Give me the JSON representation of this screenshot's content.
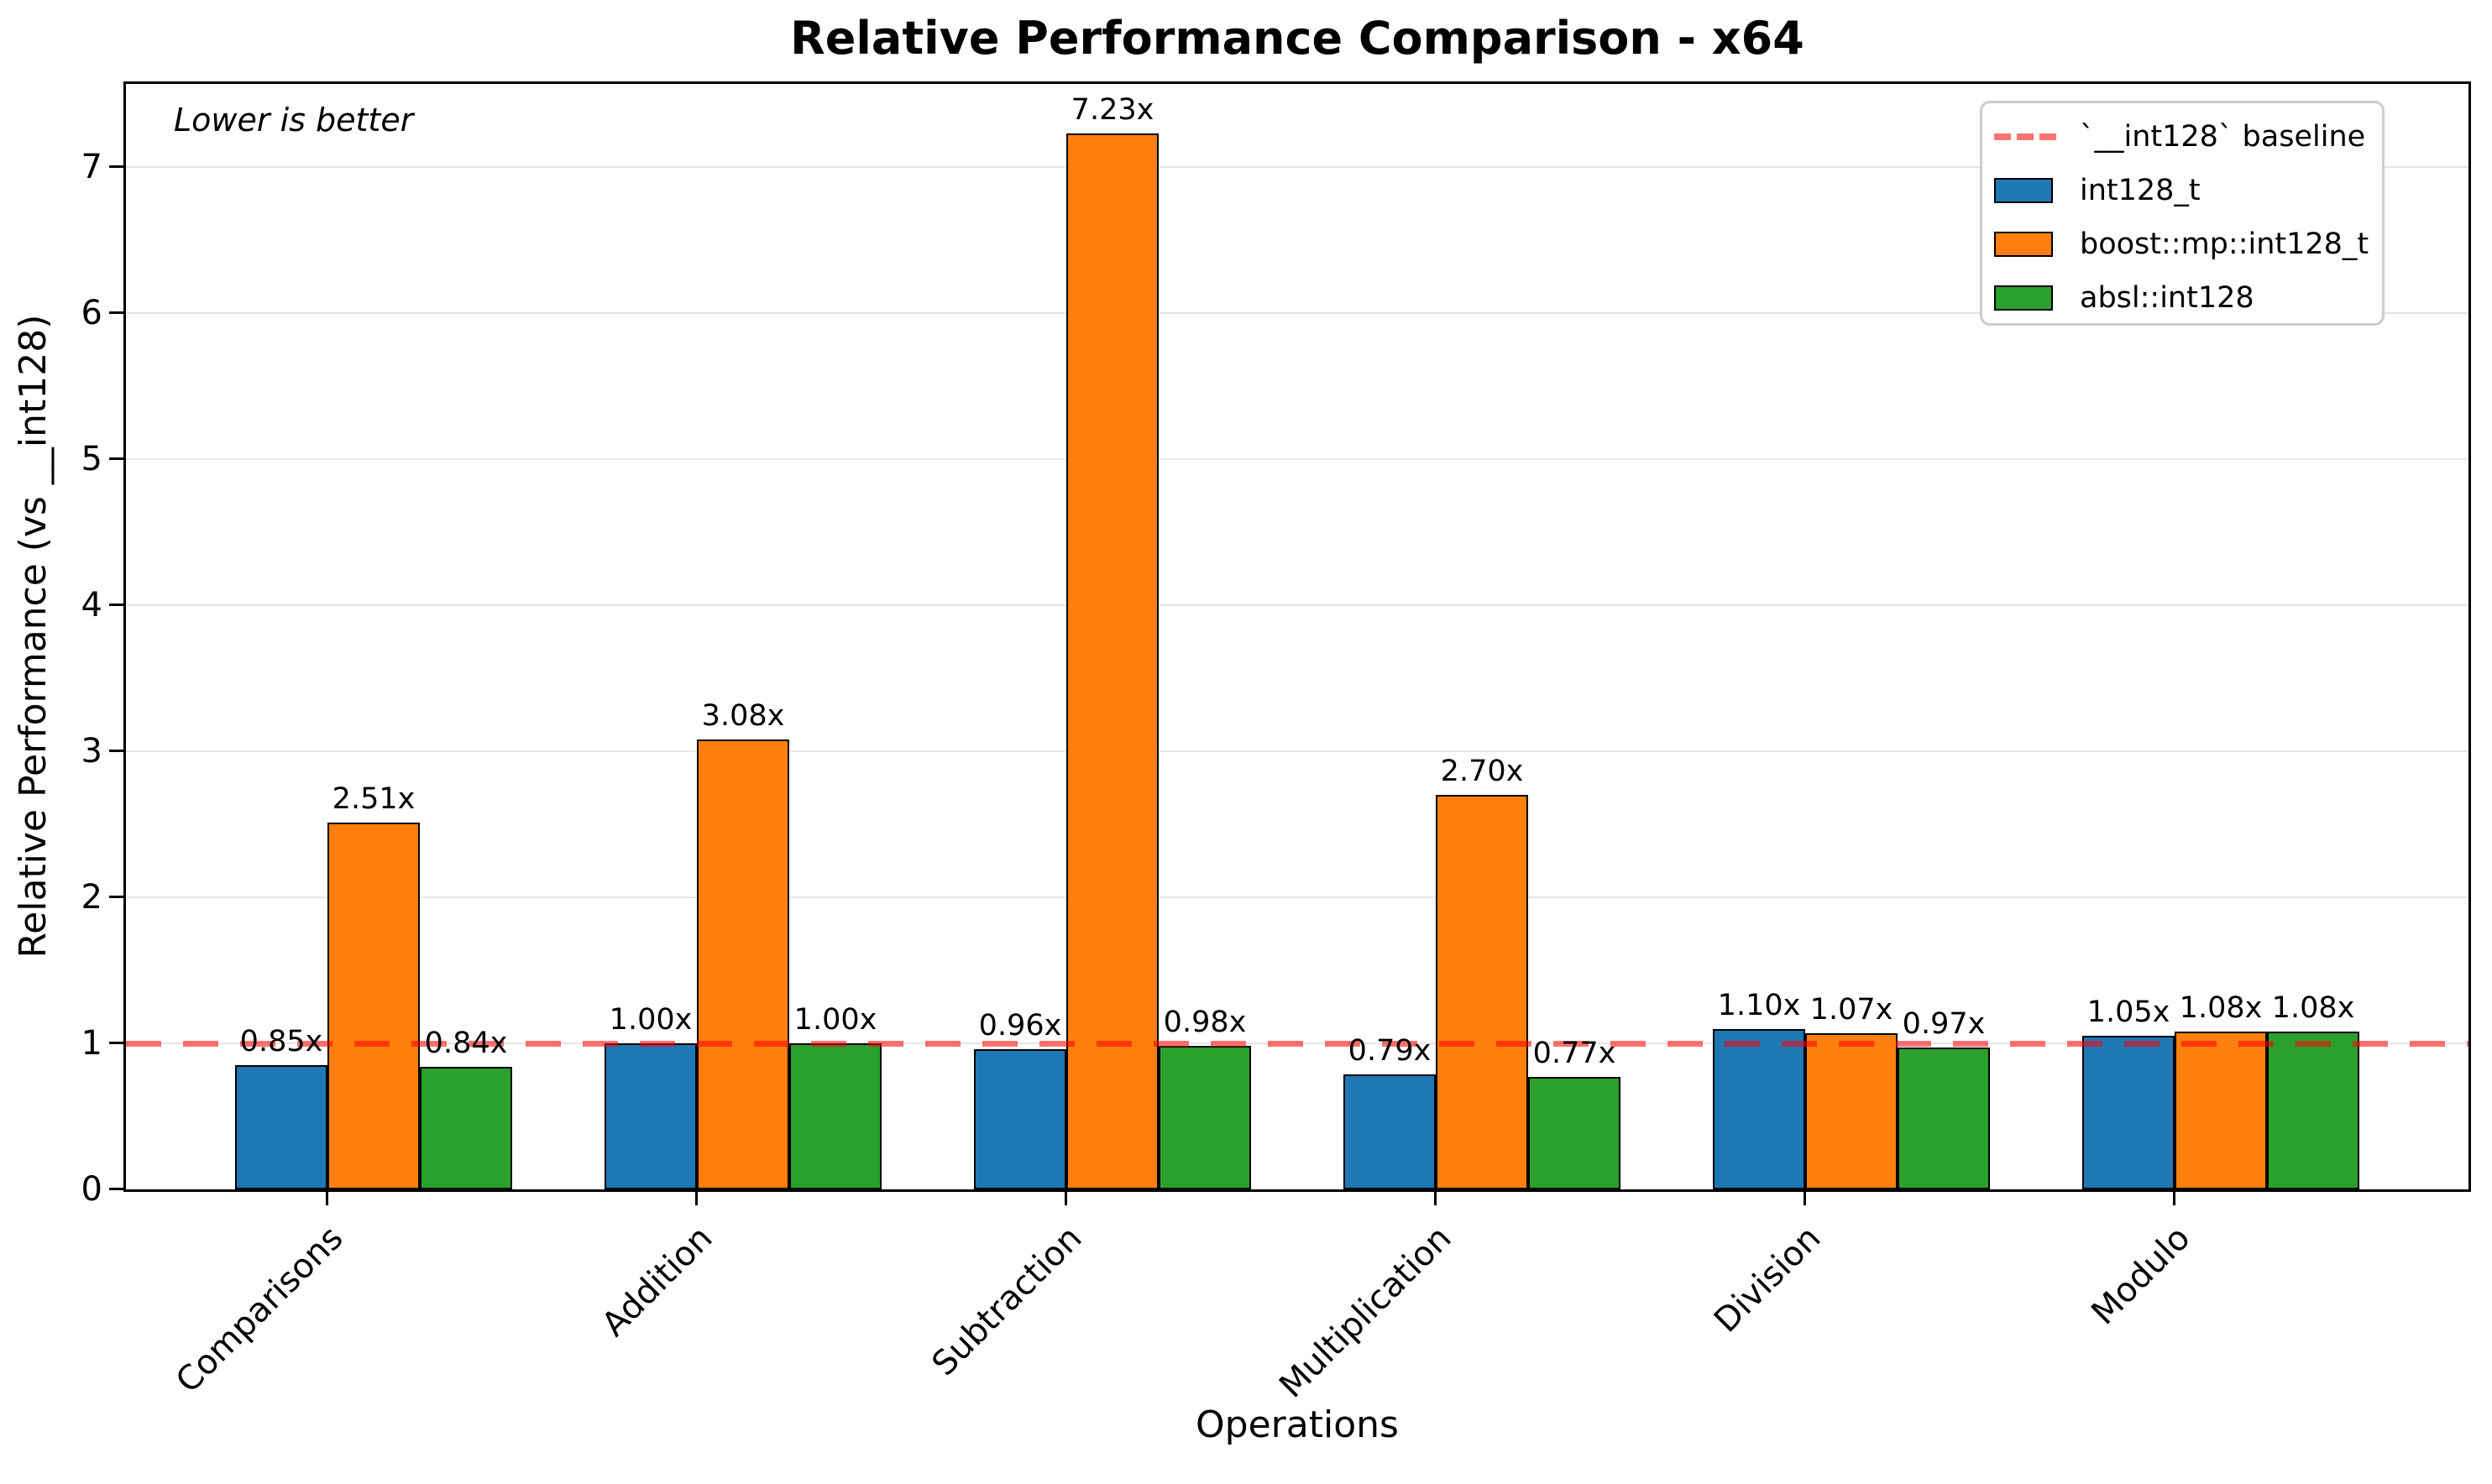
{
  "chart_data": {
    "type": "bar",
    "title": "Relative Performance Comparison - x64",
    "annotation": "Lower is better",
    "xlabel": "Operations",
    "ylabel": "Relative Performance (vs __int128)",
    "categories": [
      "Comparisons",
      "Addition",
      "Subtraction",
      "Multiplication",
      "Division",
      "Modulo"
    ],
    "series": [
      {
        "name": "int128_t",
        "color": "#1f77b4",
        "values": [
          0.85,
          1.0,
          0.96,
          0.79,
          1.1,
          1.05
        ]
      },
      {
        "name": "boost::mp::int128_t",
        "color": "#ff7f0e",
        "values": [
          2.51,
          3.08,
          7.23,
          2.7,
          1.07,
          1.08
        ]
      },
      {
        "name": "absl::int128",
        "color": "#2ca02c",
        "values": [
          0.84,
          1.0,
          0.98,
          0.77,
          0.97,
          1.08
        ]
      }
    ],
    "baseline": {
      "value": 1.0,
      "label": "`__int128` baseline",
      "color": "#ff0000",
      "alpha": 0.55,
      "style": "dashed"
    },
    "value_label_suffix": "x",
    "yticks": [
      0,
      1,
      2,
      3,
      4,
      5,
      6,
      7
    ],
    "ylim": [
      0,
      7.57
    ],
    "grid": "horizontal",
    "grid_color": "#e6e6e6",
    "bar_edge_color": "#000000",
    "legend_position": "upper right",
    "legend_border_color": "#cccccc"
  }
}
